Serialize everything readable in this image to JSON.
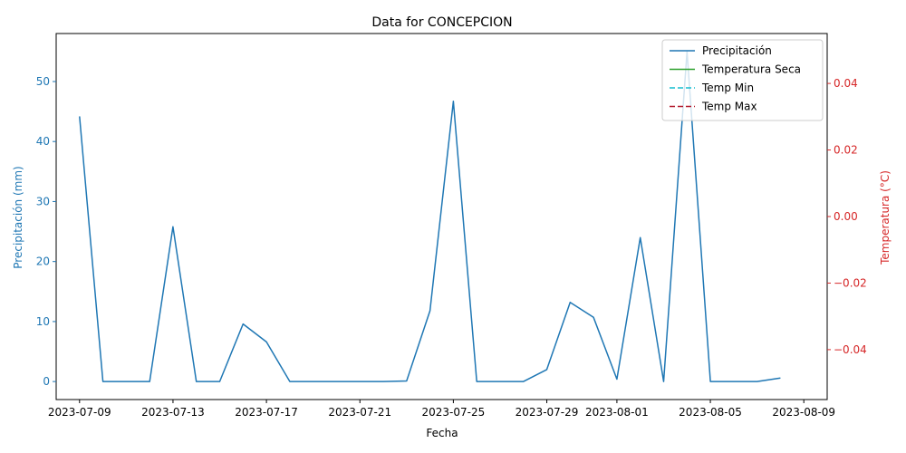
{
  "chart_data": {
    "type": "line",
    "title": "Data for CONCEPCION",
    "xlabel": "Fecha",
    "ylabel_left": "Precipitación (mm)",
    "ylabel_right": "Temperatura (°C)",
    "xlim": [
      "2023-07-08",
      "2023-08-10"
    ],
    "x_ticks": [
      "2023-07-09",
      "2023-07-13",
      "2023-07-17",
      "2023-07-21",
      "2023-07-25",
      "2023-07-29",
      "2023-08-01",
      "2023-08-05",
      "2023-08-09"
    ],
    "ylim_left": [
      -3,
      58
    ],
    "y_ticks_left": [
      0,
      10,
      20,
      30,
      40,
      50
    ],
    "ylim_right": [
      -0.055,
      0.055
    ],
    "y_ticks_right": [
      -0.04,
      -0.02,
      0.0,
      0.02,
      0.04
    ],
    "y_ticks_right_labels": [
      "−0.04",
      "−0.02",
      "0.00",
      "0.02",
      "0.04"
    ],
    "legend_position": "top-right",
    "grid": false,
    "colors": {
      "left_axis": "#1f77b4",
      "right_axis": "#d62728"
    },
    "series": [
      {
        "name": "Precipitación",
        "axis": "left",
        "color": "#1f77b4",
        "style": "solid",
        "x": [
          "2023-07-09",
          "2023-07-10",
          "2023-07-11",
          "2023-07-12",
          "2023-07-13",
          "2023-07-14",
          "2023-07-15",
          "2023-07-16",
          "2023-07-17",
          "2023-07-18",
          "2023-07-19",
          "2023-07-20",
          "2023-07-21",
          "2023-07-22",
          "2023-07-23",
          "2023-07-24",
          "2023-07-25",
          "2023-07-26",
          "2023-07-27",
          "2023-07-28",
          "2023-07-29",
          "2023-07-30",
          "2023-07-31",
          "2023-08-01",
          "2023-08-02",
          "2023-08-03",
          "2023-08-04",
          "2023-08-05",
          "2023-08-06",
          "2023-08-07",
          "2023-08-08"
        ],
        "values": [
          44.2,
          0,
          0,
          0,
          25.8,
          0,
          0,
          9.6,
          6.6,
          0,
          0,
          0,
          0,
          0,
          0.1,
          11.8,
          46.7,
          0,
          0,
          0,
          2.0,
          13.2,
          10.7,
          0.4,
          24.0,
          0,
          55.0,
          0,
          0,
          0,
          0.6
        ]
      },
      {
        "name": "Temperatura Seca",
        "axis": "right",
        "color": "#2ca02c",
        "style": "solid",
        "x": [],
        "values": []
      },
      {
        "name": "Temp Min",
        "axis": "right",
        "color": "#17becf",
        "style": "dashed",
        "x": [],
        "values": []
      },
      {
        "name": "Temp Max",
        "axis": "right",
        "color": "#b2182b",
        "style": "dashed",
        "x": [],
        "values": []
      }
    ]
  }
}
